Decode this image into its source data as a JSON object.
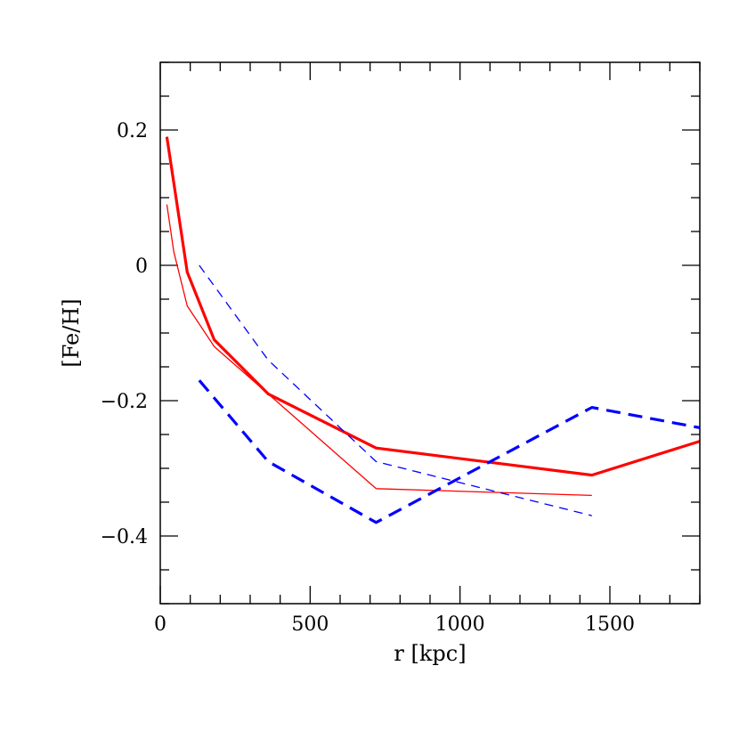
{
  "chart_data": {
    "type": "line",
    "title": "",
    "xlabel": "r [kpc]",
    "ylabel": "[Fe/H]",
    "xlim": [
      0,
      1800
    ],
    "ylim": [
      -0.5,
      0.3
    ],
    "xticks": [
      {
        "value": 0,
        "label": "0"
      },
      {
        "value": 500,
        "label": "500"
      },
      {
        "value": 1000,
        "label": "1000"
      },
      {
        "value": 1500,
        "label": "1500"
      }
    ],
    "yticks": [
      {
        "value": 0.2,
        "label": "0.2"
      },
      {
        "value": 0,
        "label": "0"
      },
      {
        "value": -0.2,
        "label": "−0.2"
      },
      {
        "value": -0.4,
        "label": "−0.4"
      }
    ],
    "x_minor_step": 100,
    "y_minor_step": 0.05,
    "grid": false,
    "legend": "none",
    "series": [
      {
        "color": "#ff0000",
        "style": "solid",
        "weight": "thick",
        "x": [
          22,
          90,
          180,
          360,
          720,
          1440,
          1800
        ],
        "y": [
          0.19,
          -0.01,
          -0.11,
          -0.19,
          -0.27,
          -0.31,
          -0.26
        ]
      },
      {
        "color": "#ff0000",
        "style": "solid",
        "weight": "thin",
        "x": [
          22,
          45,
          90,
          180,
          360,
          720,
          1440
        ],
        "y": [
          0.09,
          0.02,
          -0.06,
          -0.12,
          -0.19,
          -0.33,
          -0.34
        ]
      },
      {
        "color": "#0000ff",
        "style": "dashed",
        "weight": "thick",
        "x": [
          130,
          360,
          720,
          1440,
          1800
        ],
        "y": [
          -0.17,
          -0.29,
          -0.38,
          -0.21,
          -0.24
        ]
      },
      {
        "color": "#0000ff",
        "style": "dashed",
        "weight": "thin",
        "x": [
          130,
          360,
          720,
          1440
        ],
        "y": [
          0.0,
          -0.14,
          -0.29,
          -0.37
        ]
      }
    ]
  }
}
